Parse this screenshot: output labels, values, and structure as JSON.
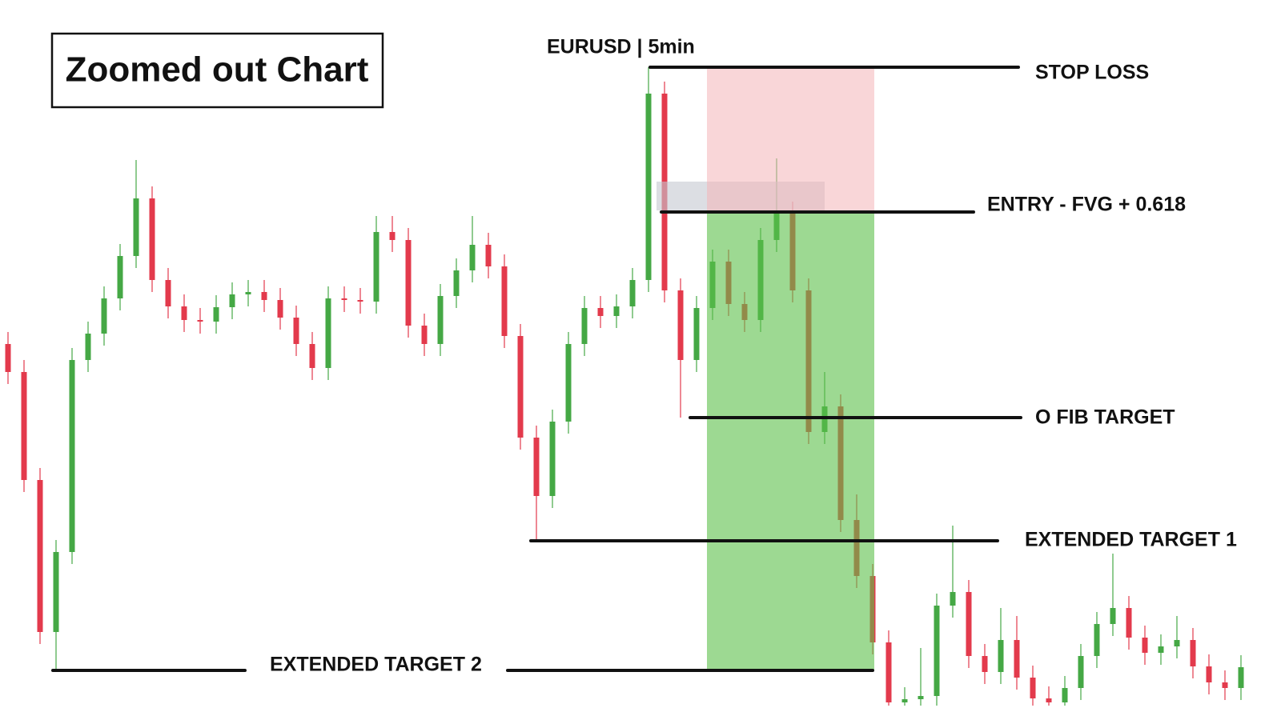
{
  "chart_data": {
    "type": "candlestick",
    "title": "Zoomed out Chart",
    "subtitle": "EURUSD | 5min",
    "ylim": [
      0,
      900
    ],
    "up_color": "#45a845",
    "down_color": "#e33a4c",
    "open": [
      470,
      435,
      300,
      110,
      210,
      450,
      483,
      527,
      580,
      652,
      550,
      517,
      500,
      498,
      516,
      532,
      535,
      525,
      503,
      470,
      440,
      527,
      525,
      523,
      610,
      600,
      493,
      470,
      530,
      562,
      594,
      567,
      480,
      353,
      280,
      373,
      470,
      515,
      505,
      517,
      550,
      783,
      537,
      450,
      515,
      573,
      520,
      500,
      600,
      633,
      537,
      360,
      392,
      250,
      180,
      97,
      22,
      26,
      30,
      143,
      160,
      80,
      60,
      100,
      53,
      27,
      22,
      40,
      80,
      120,
      140,
      103,
      84,
      92,
      100,
      67,
      47,
      40
    ],
    "high": [
      485,
      450,
      315,
      225,
      465,
      498,
      542,
      595,
      700,
      667,
      565,
      532,
      515,
      531,
      547,
      550,
      550,
      540,
      518,
      485,
      542,
      542,
      540,
      630,
      630,
      615,
      508,
      545,
      577,
      630,
      609,
      582,
      495,
      368,
      388,
      485,
      530,
      530,
      532,
      565,
      816,
      798,
      552,
      530,
      588,
      588,
      535,
      615,
      702,
      648,
      552,
      435,
      407,
      282,
      195,
      112,
      41,
      90,
      158,
      243,
      175,
      95,
      140,
      130,
      68,
      42,
      55,
      95,
      135,
      208,
      155,
      118,
      107,
      130,
      115,
      82,
      62,
      81
    ],
    "low": [
      420,
      285,
      95,
      62,
      195,
      435,
      468,
      512,
      565,
      535,
      502,
      485,
      483,
      483,
      501,
      517,
      510,
      488,
      455,
      425,
      425,
      510,
      508,
      508,
      585,
      478,
      455,
      455,
      515,
      547,
      552,
      465,
      338,
      224,
      265,
      358,
      455,
      490,
      490,
      502,
      535,
      522,
      378,
      435,
      500,
      505,
      485,
      485,
      585,
      522,
      345,
      345,
      235,
      165,
      82,
      18,
      18,
      18,
      18,
      128,
      65,
      45,
      45,
      38,
      18,
      18,
      18,
      25,
      65,
      105,
      88,
      69,
      69,
      77,
      52,
      32,
      25,
      25
    ],
    "close": [
      435,
      300,
      110,
      210,
      450,
      483,
      527,
      580,
      652,
      550,
      517,
      500,
      498,
      516,
      532,
      535,
      525,
      503,
      470,
      440,
      527,
      525,
      523,
      610,
      600,
      493,
      470,
      530,
      562,
      594,
      567,
      480,
      353,
      280,
      373,
      470,
      515,
      505,
      517,
      550,
      783,
      537,
      450,
      515,
      573,
      520,
      500,
      600,
      633,
      537,
      360,
      392,
      250,
      180,
      97,
      22,
      26,
      30,
      143,
      160,
      80,
      60,
      100,
      53,
      27,
      22,
      40,
      80,
      120,
      140,
      103,
      84,
      92,
      100,
      67,
      47,
      40,
      66
    ],
    "levels": [
      {
        "label": "STOP LOSS",
        "value": 816
      },
      {
        "label": "ENTRY - FVG + 0.618",
        "value": 635
      },
      {
        "label": "O FIB TARGET",
        "value": 378
      },
      {
        "label": "EXTENDED TARGET 1",
        "value": 224
      },
      {
        "label": "EXTENDED TARGET 2",
        "value": 62
      }
    ],
    "fvg": {
      "low": 637,
      "high": 673,
      "color": "#c4c8d0"
    },
    "risk_color": "#f4b4b8",
    "reward_color": "#5cbf4a"
  }
}
